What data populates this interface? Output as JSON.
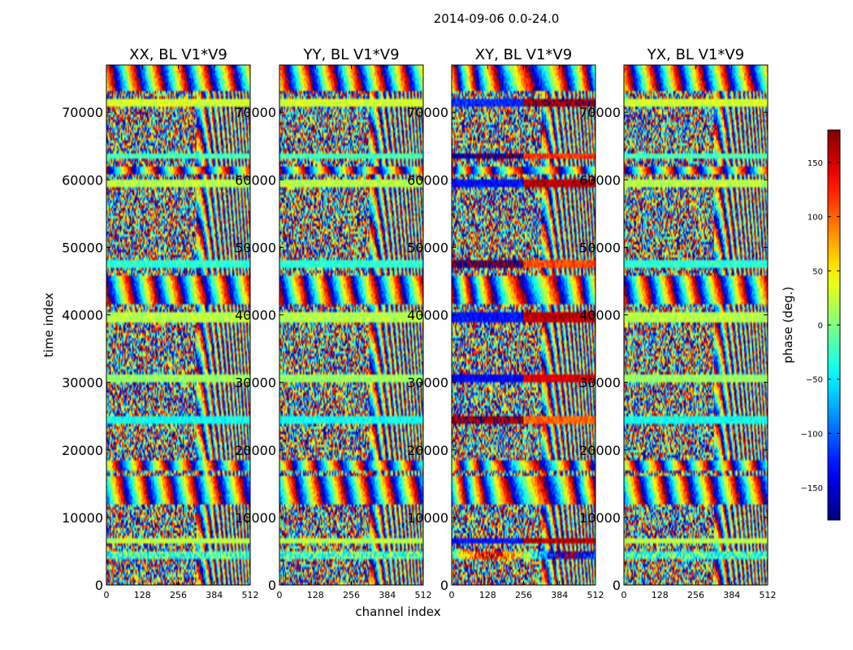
{
  "chart_data": {
    "type": "heatmap",
    "suptitle": "2014-09-06 0.0-24.0",
    "xlabel": "channel index",
    "ylabel": "time index",
    "xlim": [
      0,
      512
    ],
    "ylim": [
      0,
      77000
    ],
    "xticks": [
      0,
      128,
      256,
      384,
      512
    ],
    "yticks": [
      0,
      10000,
      20000,
      30000,
      40000,
      50000,
      60000,
      70000
    ],
    "ytick_labels": [
      "0",
      "10000",
      "20000",
      "30000",
      "40000",
      "50000",
      "60000",
      "70000"
    ],
    "panels": [
      {
        "title": "XX, BL V1*V9",
        "pol": "XX"
      },
      {
        "title": "YY, BL V1*V9",
        "pol": "YY"
      },
      {
        "title": "XY, BL V1*V9",
        "pol": "XY"
      },
      {
        "title": "YX, BL V1*V9",
        "pol": "YX"
      }
    ],
    "colorbar": {
      "label": "phase (deg.)",
      "range": [
        -180,
        180
      ],
      "ticks": [
        150,
        100,
        50,
        0,
        -50,
        -100,
        -150
      ],
      "tick_labels": [
        "150",
        "100",
        "50",
        "0",
        "−50",
        "−100",
        "−150"
      ],
      "colormap": "jet"
    },
    "bands": [
      {
        "t0": 4000,
        "t1": 5000,
        "phase": -20,
        "mode": "streak"
      },
      {
        "t0": 6000,
        "t1": 7000,
        "phase": 20,
        "mode": "const"
      },
      {
        "t0": 12000,
        "t1": 16000,
        "phase": 0,
        "mode": "fringe"
      },
      {
        "t0": 17000,
        "t1": 18500,
        "phase": 0,
        "mode": "fringe"
      },
      {
        "t0": 24000,
        "t1": 25000,
        "phase": -40,
        "mode": "const"
      },
      {
        "t0": 30000,
        "t1": 31000,
        "phase": 10,
        "mode": "const"
      },
      {
        "t0": 39000,
        "t1": 40500,
        "phase": 20,
        "mode": "const"
      },
      {
        "t0": 41500,
        "t1": 46000,
        "phase": 0,
        "mode": "fringe"
      },
      {
        "t0": 47000,
        "t1": 48000,
        "phase": -30,
        "mode": "const"
      },
      {
        "t0": 59000,
        "t1": 60000,
        "phase": 20,
        "mode": "const"
      },
      {
        "t0": 61000,
        "t1": 62000,
        "phase": 0,
        "mode": "fringe"
      },
      {
        "t0": 63000,
        "t1": 64000,
        "phase": -20,
        "mode": "const"
      },
      {
        "t0": 71000,
        "t1": 72000,
        "phase": 30,
        "mode": "const"
      },
      {
        "t0": 73000,
        "t1": 77000,
        "phase": 0,
        "mode": "fringe"
      }
    ]
  }
}
